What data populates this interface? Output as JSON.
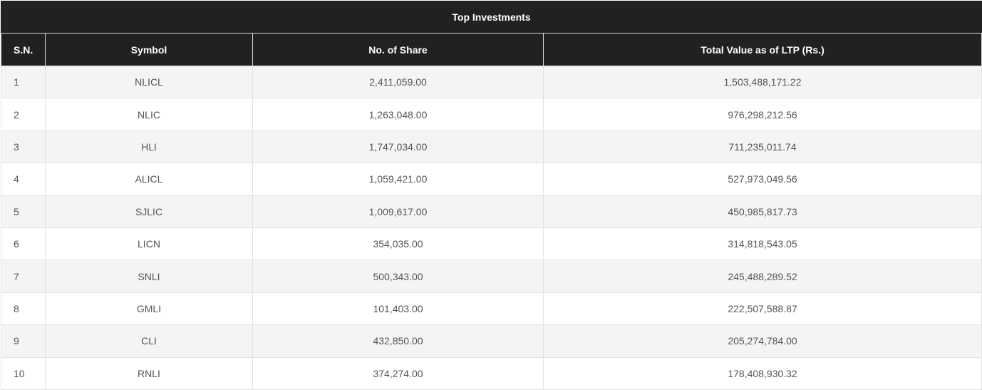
{
  "table": {
    "title": "Top Investments",
    "headers": {
      "sn": "S.N.",
      "symbol": "Symbol",
      "shares": "No. of Share",
      "value": "Total Value as of LTP (Rs.)"
    },
    "rows": [
      {
        "sn": "1",
        "symbol": "NLICL",
        "shares": "2,411,059.00",
        "value": "1,503,488,171.22"
      },
      {
        "sn": "2",
        "symbol": "NLIC",
        "shares": "1,263,048.00",
        "value": "976,298,212.56"
      },
      {
        "sn": "3",
        "symbol": "HLI",
        "shares": "1,747,034.00",
        "value": "711,235,011.74"
      },
      {
        "sn": "4",
        "symbol": "ALICL",
        "shares": "1,059,421.00",
        "value": "527,973,049.56"
      },
      {
        "sn": "5",
        "symbol": "SJLIC",
        "shares": "1,009,617.00",
        "value": "450,985,817.73"
      },
      {
        "sn": "6",
        "symbol": "LICN",
        "shares": "354,035.00",
        "value": "314,818,543.05"
      },
      {
        "sn": "7",
        "symbol": "SNLI",
        "shares": "500,343.00",
        "value": "245,488,289.52"
      },
      {
        "sn": "8",
        "symbol": "GMLI",
        "shares": "101,403.00",
        "value": "222,507,588.87"
      },
      {
        "sn": "9",
        "symbol": "CLI",
        "shares": "432,850.00",
        "value": "205,274,784.00"
      },
      {
        "sn": "10",
        "symbol": "RNLI",
        "shares": "374,274.00",
        "value": "178,408,930.32"
      }
    ]
  },
  "colors": {
    "header_bg": "#212121",
    "header_text": "#ffffff",
    "row_alt_bg": "#f4f4f4",
    "cell_text": "#555555"
  }
}
